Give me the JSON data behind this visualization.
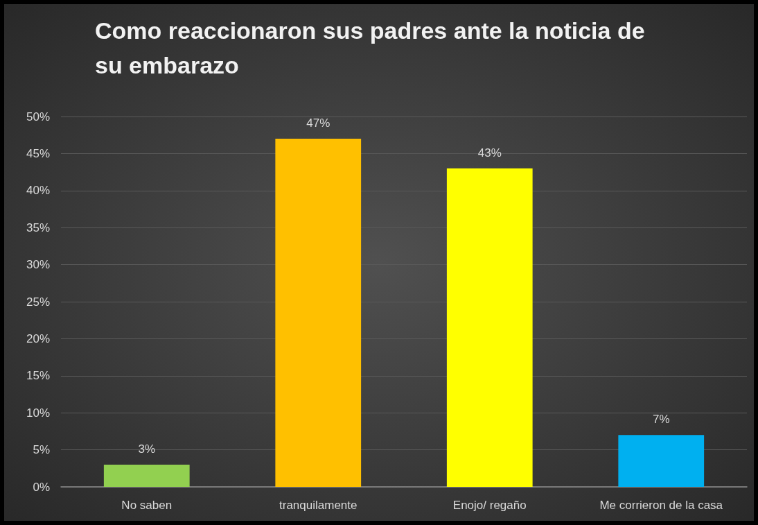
{
  "chart_data": {
    "type": "bar",
    "title": "Como reaccionaron sus padres ante la noticia de su embarazo",
    "categories": [
      "No saben",
      "tranquilamente",
      "Enojo/ regaño",
      "Me corrieron de la casa"
    ],
    "values": [
      3,
      47,
      43,
      7
    ],
    "value_labels": [
      "3%",
      "47%",
      "43%",
      "7%"
    ],
    "colors": [
      "#92d050",
      "#ffc000",
      "#ffff00",
      "#00b0f0"
    ],
    "ylim": [
      0,
      50
    ],
    "yticks": [
      {
        "value": 0,
        "label": "0%"
      },
      {
        "value": 5,
        "label": "5%"
      },
      {
        "value": 10,
        "label": "10%"
      },
      {
        "value": 15,
        "label": "15%"
      },
      {
        "value": 20,
        "label": "20%"
      },
      {
        "value": 25,
        "label": "25%"
      },
      {
        "value": 30,
        "label": "30%"
      },
      {
        "value": 35,
        "label": "35%"
      },
      {
        "value": 40,
        "label": "40%"
      },
      {
        "value": 45,
        "label": "45%"
      },
      {
        "value": 50,
        "label": "50%"
      }
    ],
    "grid": "y"
  }
}
